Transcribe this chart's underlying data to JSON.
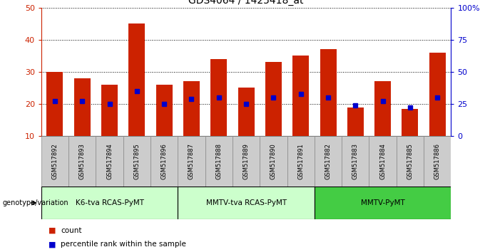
{
  "title": "GDS4064 / 1425418_at",
  "samples": [
    "GSM517892",
    "GSM517893",
    "GSM517894",
    "GSM517895",
    "GSM517896",
    "GSM517887",
    "GSM517888",
    "GSM517889",
    "GSM517890",
    "GSM517891",
    "GSM517882",
    "GSM517883",
    "GSM517884",
    "GSM517885",
    "GSM517886"
  ],
  "counts": [
    30,
    28,
    26,
    45,
    26,
    27,
    34,
    25,
    33,
    35,
    37,
    19,
    27,
    18.5,
    36
  ],
  "percentile_ranks": [
    21,
    21,
    20,
    24,
    20,
    21.5,
    22,
    20,
    22,
    23,
    22,
    19.5,
    21,
    19,
    22
  ],
  "groups": [
    {
      "label": "K6-tva RCAS-PyMT",
      "start": 0,
      "end": 5
    },
    {
      "label": "MMTV-tva RCAS-PyMT",
      "start": 5,
      "end": 10
    },
    {
      "label": "MMTV-PyMT",
      "start": 10,
      "end": 15
    }
  ],
  "group_colors": [
    "#ccffcc",
    "#ccffcc",
    "#44cc44"
  ],
  "bar_color": "#cc2200",
  "marker_color": "#0000cc",
  "ylim_left": [
    10,
    50
  ],
  "ylim_right": [
    0,
    100
  ],
  "yticks_left": [
    10,
    20,
    30,
    40,
    50
  ],
  "yticks_right": [
    0,
    25,
    50,
    75,
    100
  ],
  "legend_count_label": "count",
  "legend_prank_label": "percentile rank within the sample",
  "genotype_label": "genotype/variation"
}
